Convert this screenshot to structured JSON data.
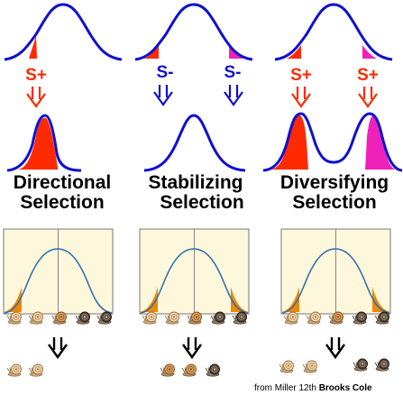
{
  "columns": [
    {
      "title_line1": "Directional",
      "title_line2": "Selection",
      "left_label": "S+",
      "right_label": ""
    },
    {
      "title_line1": "Stabilizing",
      "title_line2": "Selection",
      "left_label": "S-",
      "right_label": "S-"
    },
    {
      "title_line1": "Diversifying",
      "title_line2": "Selection",
      "left_label": "S+",
      "right_label": "S+"
    }
  ],
  "credit": {
    "source": "from Miller 12th",
    "publisher": "Brooks Cole"
  },
  "colors": {
    "curve_top": "#1010d0",
    "fill_red": "#ff2a00",
    "fill_magenta": "#ee22bb",
    "splus_text": "#ff2a00",
    "sminus_text": "#1010d0",
    "panel_bg": "#fdf7dc",
    "panel_curve": "#3070b0",
    "panel_fill": "#ee8800"
  },
  "icons": {
    "arrow_selection": "double-line-down-arrow",
    "arrow_result": "black-double-line-down-arrow",
    "organism": "snail-icon"
  }
}
